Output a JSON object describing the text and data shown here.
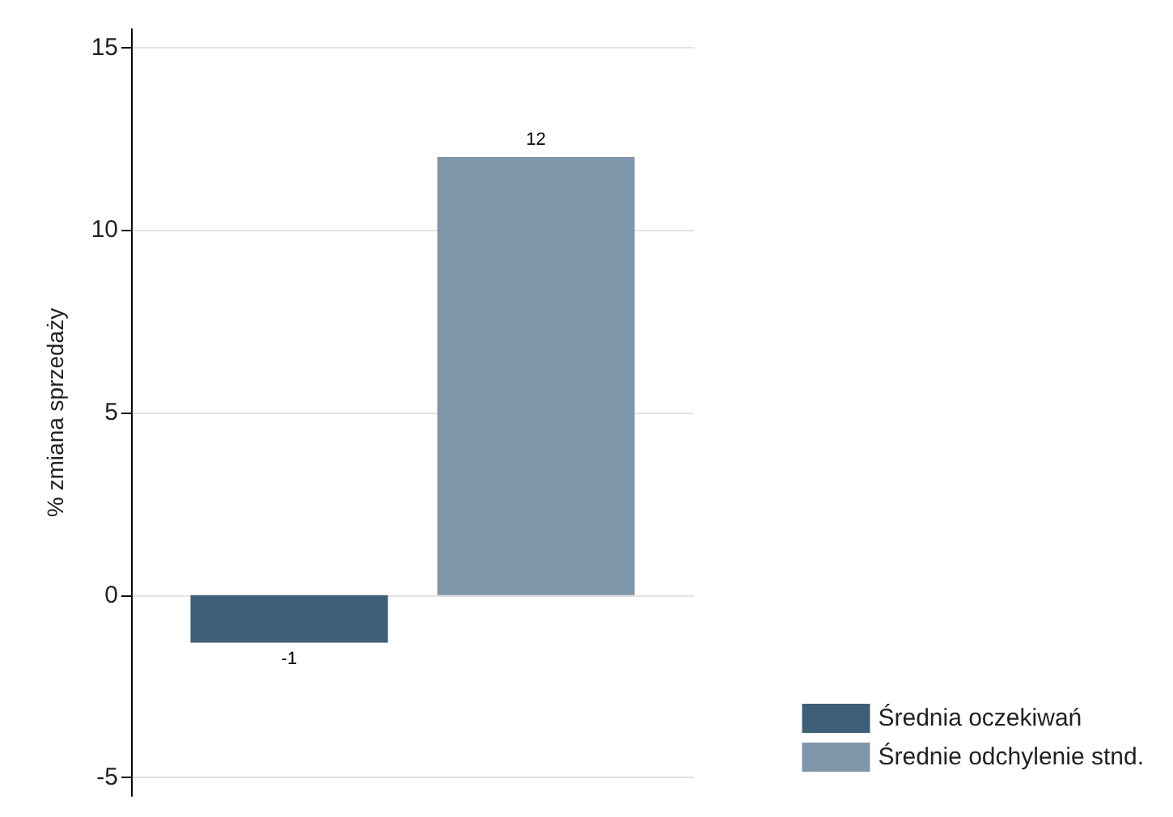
{
  "chart_data": {
    "type": "bar",
    "ylabel": "% zmiana sprzedaży",
    "categories": [
      null
    ],
    "series": [
      {
        "name": "Średnia oczekiwań",
        "color": "#3f5f78",
        "values": [
          -1.3
        ],
        "value_labels": [
          "-1"
        ]
      },
      {
        "name": "Średnie odchylenie stnd.",
        "color": "#7f95aa",
        "values": [
          12
        ],
        "value_labels": [
          "12"
        ]
      }
    ],
    "ylim": [
      -5.5,
      15.5
    ],
    "yticks": [
      -5,
      0,
      5,
      10,
      15
    ],
    "grid": "y",
    "legend": "bottom right",
    "tick_labels": "y"
  }
}
